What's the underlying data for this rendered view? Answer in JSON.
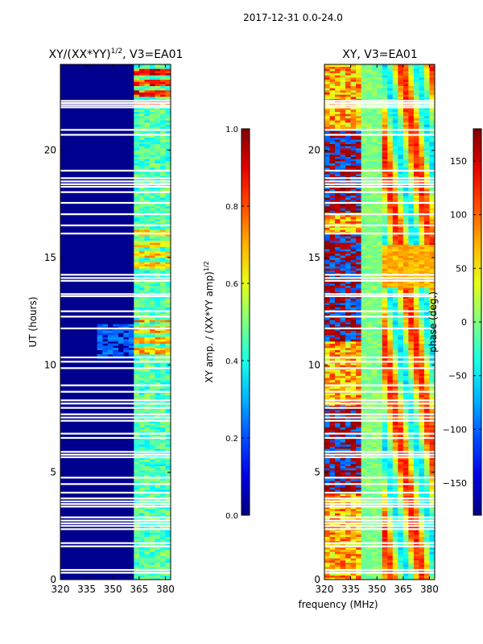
{
  "figure_title": "2017-12-31 0.0-24.0",
  "xlabel_shared": "frequency (MHz)",
  "chart_data": [
    {
      "type": "heatmap",
      "title": "XY/(XX*YY)^{1/2}, V3=EA01",
      "title_main": "XY/(XX*YY)",
      "title_sup": "1/2",
      "title_tail": ", V3=EA01",
      "xlim": [
        320,
        383
      ],
      "ylim": [
        0,
        24
      ],
      "xticks": [
        320,
        335,
        350,
        365,
        380
      ],
      "yticks": [
        0,
        5,
        10,
        15,
        20
      ],
      "ylabel": "UT (hours)",
      "colormap": "jet",
      "colorbar": {
        "label": "XY amp. / (XX*YY amp)^{1/2}",
        "label_main": "XY amp. / (XX*YY amp)",
        "label_sup": "1/2",
        "range": [
          0.0,
          1.0
        ],
        "ticks": [
          "0.0",
          "0.2",
          "0.4",
          "0.6",
          "0.8",
          "1.0"
        ],
        "tick_values": [
          0.0,
          0.2,
          0.4,
          0.6,
          0.8,
          1.0
        ]
      },
      "flagged_hours": [
        0.32,
        0.45,
        1.55,
        1.7,
        2.35,
        2.5,
        2.62,
        2.75,
        2.9,
        3.4,
        3.52,
        3.64,
        3.78,
        4.05,
        4.45,
        4.75,
        5.7,
        5.82,
        5.95,
        6.6,
        6.8,
        7.4,
        7.55,
        7.7,
        8.0,
        8.2,
        8.35,
        8.75,
        9.05,
        9.85,
        10.15,
        10.35,
        11.7,
        12.25,
        12.5,
        13.2,
        13.3,
        13.92,
        14.05,
        14.2,
        16.12,
        16.5,
        17.02,
        17.55,
        18.05,
        18.3,
        18.42,
        18.55,
        18.7,
        19.05,
        20.72,
        20.95,
        22.0,
        22.1,
        22.2,
        22.3
      ]
    },
    {
      "type": "heatmap",
      "title": "XY, V3=EA01",
      "xlim": [
        320,
        383
      ],
      "ylim": [
        0,
        24
      ],
      "xticks": [
        320,
        335,
        350,
        365,
        380
      ],
      "yticks": [
        0,
        5,
        10,
        15,
        20
      ],
      "colormap": "jet",
      "colorbar": {
        "label": "phase (deg.)",
        "range": [
          -180,
          180
        ],
        "ticks": [
          "−150",
          "−100",
          "−50",
          "0",
          "50",
          "100",
          "150"
        ],
        "tick_values": [
          -150,
          -100,
          -50,
          0,
          50,
          100,
          150
        ]
      },
      "flagged_hours": [
        0.32,
        0.45,
        1.55,
        1.7,
        2.35,
        2.5,
        2.62,
        2.75,
        2.9,
        3.4,
        3.52,
        3.64,
        3.78,
        4.05,
        4.45,
        4.75,
        5.7,
        5.82,
        5.95,
        6.6,
        6.8,
        7.4,
        7.55,
        7.7,
        8.0,
        8.2,
        8.35,
        8.75,
        9.05,
        9.85,
        10.15,
        10.35,
        11.7,
        12.25,
        12.5,
        13.2,
        13.3,
        13.92,
        14.05,
        14.2,
        16.12,
        16.5,
        17.02,
        17.55,
        18.05,
        18.3,
        18.42,
        18.55,
        18.7,
        19.05,
        20.72,
        20.95,
        22.0,
        22.1,
        22.2,
        22.3
      ]
    }
  ]
}
